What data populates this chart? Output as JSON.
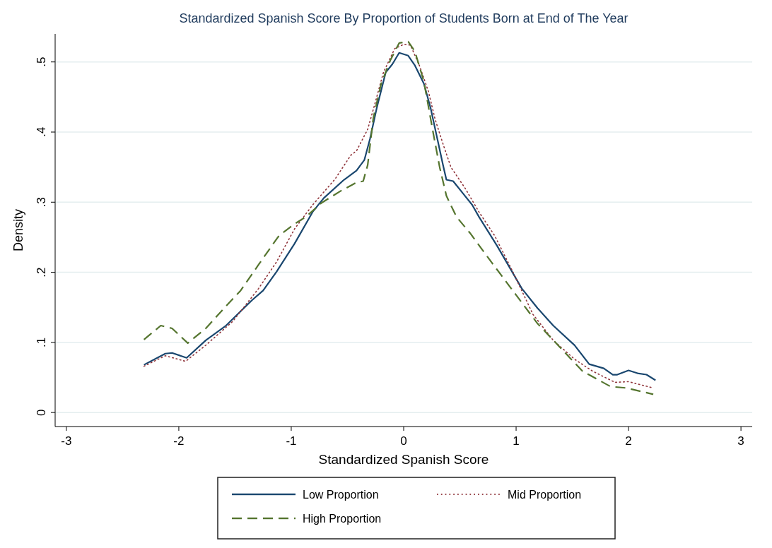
{
  "chart_data": {
    "type": "line",
    "title": "Standardized Spanish Score By Proportion of Students Born at End of The Year",
    "xlabel": "Standardized Spanish Score",
    "ylabel": "Density",
    "xlim": [
      -3.1,
      3.1
    ],
    "xticks": [
      -3,
      -2,
      -1,
      0,
      1,
      2,
      3
    ],
    "ylim": [
      -0.02,
      0.54
    ],
    "yticks": [
      0,
      {
        "value": 0.1,
        "label": ".1"
      },
      {
        "value": 0.2,
        "label": ".2"
      },
      {
        "value": 0.3,
        "label": ".3"
      },
      {
        "value": 0.4,
        "label": ".4"
      },
      {
        "value": 0.5,
        "label": ".5"
      }
    ],
    "grid": "y",
    "legend": "bottom",
    "marker": "none",
    "series": [
      {
        "name": "Low Proportion",
        "color": "#1a476f",
        "line_style": "solid",
        "x": [
          -2.31,
          -2.12,
          -2.06,
          -1.93,
          -1.76,
          -1.58,
          -1.35,
          -1.25,
          -1.13,
          -0.97,
          -0.81,
          -0.71,
          -0.53,
          -0.42,
          -0.35,
          -0.3,
          -0.24,
          -0.16,
          -0.1,
          -0.04,
          0.04,
          0.1,
          0.18,
          0.24,
          0.3,
          0.35,
          0.38,
          0.44,
          0.53,
          0.61,
          0.67,
          0.83,
          1.05,
          1.19,
          1.33,
          1.52,
          1.65,
          1.78,
          1.86,
          1.9,
          2.0,
          2.08,
          2.16,
          2.24
        ],
        "values": [
          0.068,
          0.084,
          0.085,
          0.078,
          0.103,
          0.124,
          0.16,
          0.174,
          0.201,
          0.241,
          0.286,
          0.306,
          0.332,
          0.345,
          0.36,
          0.39,
          0.434,
          0.485,
          0.497,
          0.513,
          0.509,
          0.495,
          0.469,
          0.434,
          0.39,
          0.353,
          0.332,
          0.33,
          0.312,
          0.296,
          0.279,
          0.238,
          0.177,
          0.149,
          0.124,
          0.096,
          0.069,
          0.063,
          0.054,
          0.054,
          0.06,
          0.056,
          0.054,
          0.046
        ]
      },
      {
        "name": "Mid Proportion",
        "color": "#90353b",
        "line_style": "dotted",
        "x": [
          -2.31,
          -2.12,
          -1.94,
          -1.76,
          -1.52,
          -1.29,
          -1.13,
          -0.97,
          -0.81,
          -0.61,
          -0.47,
          -0.42,
          -0.32,
          -0.26,
          -0.18,
          -0.08,
          0,
          0.06,
          0.14,
          0.22,
          0.28,
          0.35,
          0.42,
          0.55,
          0.67,
          0.81,
          0.97,
          1.15,
          1.33,
          1.52,
          1.68,
          1.88,
          2.0,
          2.22
        ],
        "values": [
          0.066,
          0.081,
          0.073,
          0.096,
          0.13,
          0.177,
          0.215,
          0.262,
          0.296,
          0.333,
          0.367,
          0.373,
          0.404,
          0.438,
          0.485,
          0.519,
          0.525,
          0.524,
          0.495,
          0.458,
          0.418,
          0.383,
          0.35,
          0.319,
          0.286,
          0.252,
          0.201,
          0.14,
          0.103,
          0.076,
          0.059,
          0.043,
          0.044,
          0.035
        ]
      },
      {
        "name": "High Proportion",
        "color": "#55752f",
        "line_style": "dashed",
        "x": [
          -2.31,
          -2.16,
          -2.06,
          -1.92,
          -1.76,
          -1.59,
          -1.45,
          -1.29,
          -1.11,
          -0.97,
          -0.87,
          -0.73,
          -0.56,
          -0.42,
          -0.36,
          -0.32,
          -0.27,
          -0.2,
          -0.12,
          -0.04,
          0.04,
          0.1,
          0.18,
          0.26,
          0.32,
          0.38,
          0.47,
          0.59,
          0.75,
          0.97,
          1.19,
          1.39,
          1.59,
          1.84,
          1.98,
          2.22
        ],
        "values": [
          0.104,
          0.124,
          0.12,
          0.099,
          0.12,
          0.15,
          0.174,
          0.211,
          0.252,
          0.269,
          0.279,
          0.299,
          0.316,
          0.328,
          0.33,
          0.353,
          0.42,
          0.469,
          0.502,
          0.527,
          0.529,
          0.515,
          0.472,
          0.401,
          0.35,
          0.309,
          0.279,
          0.256,
          0.221,
          0.174,
          0.127,
          0.093,
          0.059,
          0.037,
          0.035,
          0.026
        ]
      }
    ]
  }
}
